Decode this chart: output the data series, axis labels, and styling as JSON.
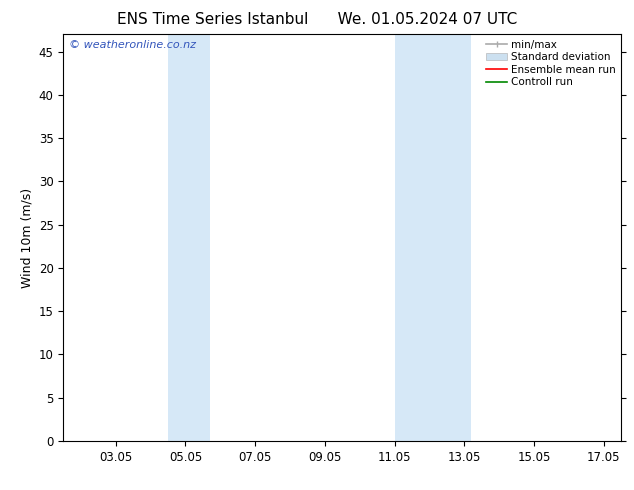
{
  "title_left": "ENS Time Series Istanbul",
  "title_right": "We. 01.05.2024 07 UTC",
  "ylabel": "Wind 10m (m/s)",
  "ylim": [
    0,
    47
  ],
  "yticks": [
    0,
    5,
    10,
    15,
    20,
    25,
    30,
    35,
    40,
    45
  ],
  "xlim_start": 1.5,
  "xlim_end": 17.5,
  "xtick_labels": [
    "03.05",
    "05.05",
    "07.05",
    "09.05",
    "11.05",
    "13.05",
    "15.05",
    "17.05"
  ],
  "xtick_positions": [
    3.0,
    5.0,
    7.0,
    9.0,
    11.0,
    13.0,
    15.0,
    17.0
  ],
  "shaded_bands": [
    {
      "x_start": 4.5,
      "x_end": 5.7
    },
    {
      "x_start": 11.0,
      "x_end": 13.2
    }
  ],
  "bg_color": "#ffffff",
  "shade_color": "#d6e8f7",
  "border_color": "#000000",
  "title_fontsize": 11,
  "axis_label_fontsize": 9,
  "tick_fontsize": 8.5,
  "watermark_text": "© weatheronline.co.nz",
  "watermark_color": "#3355bb",
  "watermark_fontsize": 8,
  "legend_items": [
    {
      "label": "min/max",
      "color": "#aaaaaa",
      "lw": 1.2
    },
    {
      "label": "Standard deviation",
      "color": "#cce0f0",
      "lw": 5
    },
    {
      "label": "Ensemble mean run",
      "color": "#ff0000",
      "lw": 1.2
    },
    {
      "label": "Controll run",
      "color": "#008800",
      "lw": 1.2
    }
  ]
}
